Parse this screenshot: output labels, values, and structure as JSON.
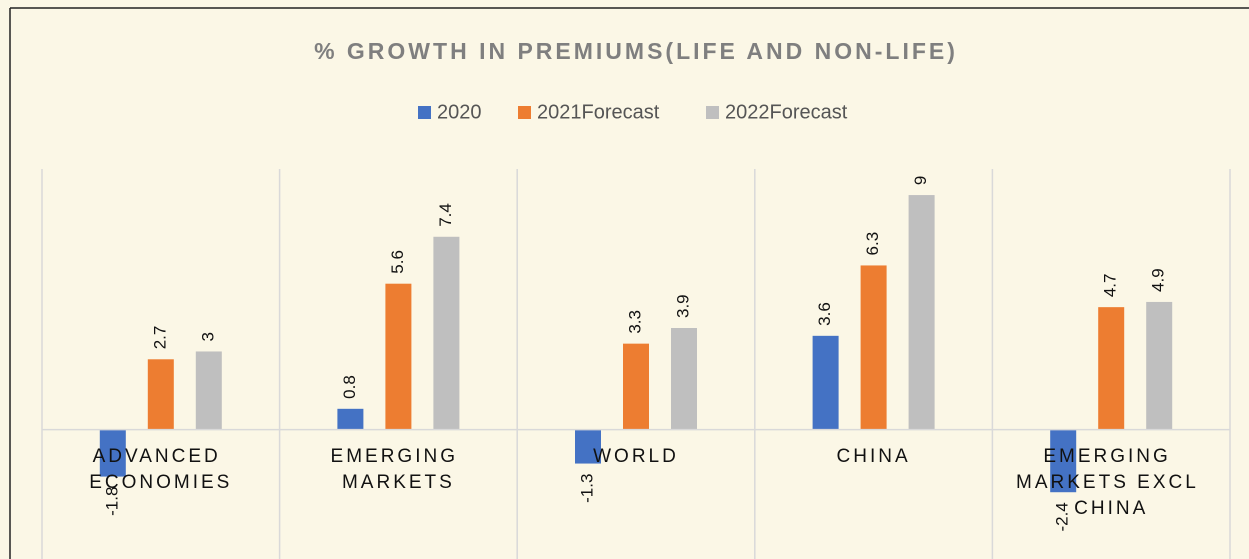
{
  "chart_data": {
    "type": "bar",
    "title": "% GROWTH IN PREMIUMS(LIFE AND NON-LIFE)",
    "categories": [
      "ADVANCED ECONOMIES",
      "EMERGING MARKETS",
      "WORLD",
      "CHINA",
      "EMERGING MARKETS EXCL CHINA"
    ],
    "series": [
      {
        "name": "2020",
        "color": "#4472c4",
        "values": [
          -1.8,
          0.8,
          -1.3,
          3.6,
          -2.4
        ]
      },
      {
        "name": "2021Forecast",
        "color": "#ed7d31",
        "values": [
          2.7,
          5.6,
          3.3,
          6.3,
          4.7
        ]
      },
      {
        "name": "2022Forecast",
        "color": "#bfbfbf",
        "values": [
          3,
          7.4,
          3.9,
          9,
          4.9
        ]
      }
    ],
    "ylim": [
      -5,
      10
    ],
    "legend": "top"
  }
}
